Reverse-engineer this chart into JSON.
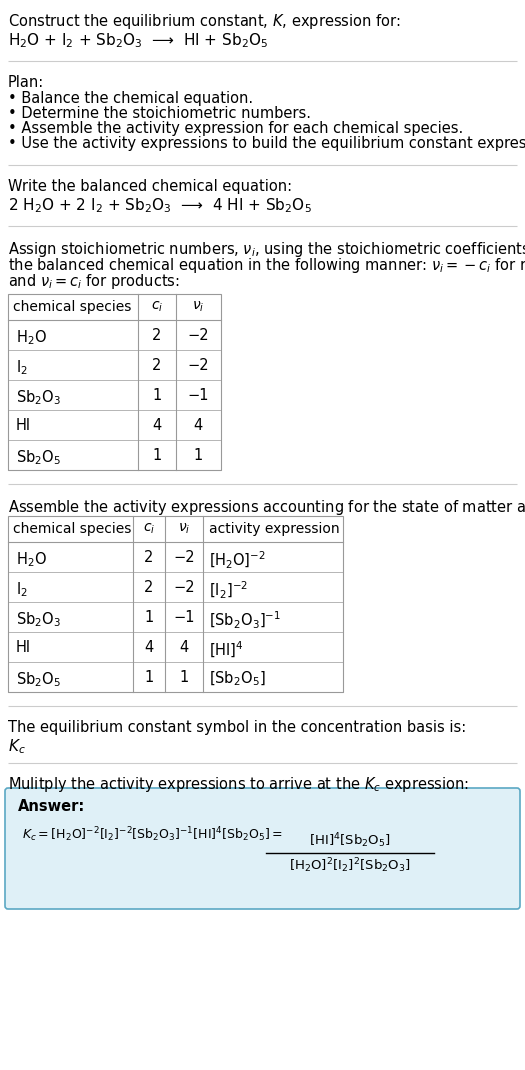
{
  "title_line1": "Construct the equilibrium constant, $K$, expression for:",
  "reaction_unbalanced": "H$_2$O + I$_2$ + Sb$_2$O$_3$  ⟶  HI + Sb$_2$O$_5$",
  "plan_header": "Plan:",
  "plan_items": [
    "• Balance the chemical equation.",
    "• Determine the stoichiometric numbers.",
    "• Assemble the activity expression for each chemical species.",
    "• Use the activity expressions to build the equilibrium constant expression."
  ],
  "balanced_header": "Write the balanced chemical equation:",
  "reaction_balanced": "2 H$_2$O + 2 I$_2$ + Sb$_2$O$_3$  ⟶  4 HI + Sb$_2$O$_5$",
  "stoich_header_lines": [
    "Assign stoichiometric numbers, $\\nu_i$, using the stoichiometric coefficients, $c_i$, from",
    "the balanced chemical equation in the following manner: $\\nu_i = -c_i$ for reactants",
    "and $\\nu_i = c_i$ for products:"
  ],
  "table1_headers": [
    "chemical species",
    "$c_i$",
    "$\\nu_i$"
  ],
  "table1_rows": [
    [
      "H$_2$O",
      "2",
      "−2"
    ],
    [
      "I$_2$",
      "2",
      "−2"
    ],
    [
      "Sb$_2$O$_3$",
      "1",
      "−1"
    ],
    [
      "HI",
      "4",
      "4"
    ],
    [
      "Sb$_2$O$_5$",
      "1",
      "1"
    ]
  ],
  "activity_header": "Assemble the activity expressions accounting for the state of matter and $\\nu_i$:",
  "table2_headers": [
    "chemical species",
    "$c_i$",
    "$\\nu_i$",
    "activity expression"
  ],
  "table2_rows": [
    [
      "H$_2$O",
      "2",
      "−2",
      "[H$_2$O]$^{-2}$"
    ],
    [
      "I$_2$",
      "2",
      "−2",
      "[I$_2$]$^{-2}$"
    ],
    [
      "Sb$_2$O$_3$",
      "1",
      "−1",
      "[Sb$_2$O$_3$]$^{-1}$"
    ],
    [
      "HI",
      "4",
      "4",
      "[HI]$^4$"
    ],
    [
      "Sb$_2$O$_5$",
      "1",
      "1",
      "[Sb$_2$O$_5$]"
    ]
  ],
  "kc_header": "The equilibrium constant symbol in the concentration basis is:",
  "kc_symbol": "$K_c$",
  "multiply_header": "Mulitply the activity expressions to arrive at the $K_c$ expression:",
  "answer_label": "Answer:",
  "bg_color": "#ffffff",
  "table_border_color": "#999999",
  "answer_bg_color": "#dff0f7",
  "answer_border_color": "#5ba8c4",
  "text_color": "#000000",
  "separator_color": "#cccccc"
}
